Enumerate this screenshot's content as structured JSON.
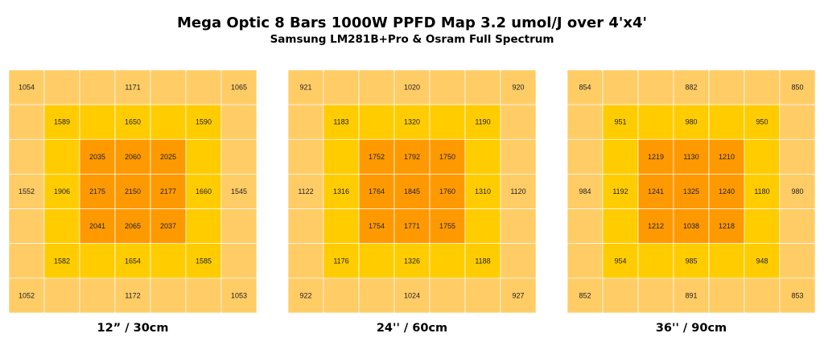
{
  "title": "Mega Optic 8 Bars 1000W PPFD Map 3.2 umol/J over 4'x4'",
  "subtitle": "Samsung LM281B+Pro & Osram Full Spectrum",
  "colors": {
    "outer": "#FFCC66",
    "middle": "#FFCC00",
    "inner": "#FF9900",
    "grid": "#FFFFFF"
  },
  "chart_data": [
    {
      "type": "heatmap",
      "title": "12” / 30cm",
      "zones": [
        "outer",
        "outer",
        "outer",
        "outer",
        "outer",
        "outer",
        "outer",
        "outer",
        "middle",
        "middle",
        "middle",
        "middle",
        "middle",
        "outer",
        "outer",
        "middle",
        "inner",
        "inner",
        "inner",
        "middle",
        "outer",
        "outer",
        "middle",
        "inner",
        "inner",
        "inner",
        "middle",
        "outer",
        "outer",
        "middle",
        "inner",
        "inner",
        "inner",
        "middle",
        "outer",
        "outer",
        "middle",
        "middle",
        "middle",
        "middle",
        "middle",
        "outer",
        "outer",
        "outer",
        "outer",
        "outer",
        "outer",
        "outer",
        "outer"
      ],
      "readings": [
        {
          "row": 0,
          "col": 0,
          "value": "1054"
        },
        {
          "row": 0,
          "col": 3,
          "value": "1171"
        },
        {
          "row": 0,
          "col": 6,
          "value": "1065"
        },
        {
          "row": 1,
          "col": 1,
          "value": "1589"
        },
        {
          "row": 1,
          "col": 3,
          "value": "1650"
        },
        {
          "row": 1,
          "col": 5,
          "value": "1590"
        },
        {
          "row": 2,
          "col": 2,
          "value": "2035"
        },
        {
          "row": 2,
          "col": 3,
          "value": "2060"
        },
        {
          "row": 2,
          "col": 4,
          "value": "2025"
        },
        {
          "row": 3,
          "col": 0,
          "value": "1552"
        },
        {
          "row": 3,
          "col": 1,
          "value": "1906"
        },
        {
          "row": 3,
          "col": 2,
          "value": "2175"
        },
        {
          "row": 3,
          "col": 3,
          "value": "2150"
        },
        {
          "row": 3,
          "col": 4,
          "value": "2177"
        },
        {
          "row": 3,
          "col": 5,
          "value": "1660"
        },
        {
          "row": 3,
          "col": 6,
          "value": "1545"
        },
        {
          "row": 4,
          "col": 2,
          "value": "2041"
        },
        {
          "row": 4,
          "col": 3,
          "value": "2065"
        },
        {
          "row": 4,
          "col": 4,
          "value": "2037"
        },
        {
          "row": 5,
          "col": 1,
          "value": "1582"
        },
        {
          "row": 5,
          "col": 3,
          "value": "1654"
        },
        {
          "row": 5,
          "col": 5,
          "value": "1585"
        },
        {
          "row": 6,
          "col": 0,
          "value": "1052"
        },
        {
          "row": 6,
          "col": 3,
          "value": "1172"
        },
        {
          "row": 6,
          "col": 6,
          "value": "1053"
        }
      ]
    },
    {
      "type": "heatmap",
      "title": "24'' / 60cm",
      "zones": [
        "outer",
        "outer",
        "outer",
        "outer",
        "outer",
        "outer",
        "outer",
        "outer",
        "middle",
        "middle",
        "middle",
        "middle",
        "middle",
        "outer",
        "outer",
        "middle",
        "inner",
        "inner",
        "inner",
        "middle",
        "outer",
        "outer",
        "middle",
        "inner",
        "inner",
        "inner",
        "middle",
        "outer",
        "outer",
        "middle",
        "inner",
        "inner",
        "inner",
        "middle",
        "outer",
        "outer",
        "middle",
        "middle",
        "middle",
        "middle",
        "middle",
        "outer",
        "outer",
        "outer",
        "outer",
        "outer",
        "outer",
        "outer",
        "outer"
      ],
      "readings": [
        {
          "row": 0,
          "col": 0,
          "value": "921"
        },
        {
          "row": 0,
          "col": 3,
          "value": "1020"
        },
        {
          "row": 0,
          "col": 6,
          "value": "920"
        },
        {
          "row": 1,
          "col": 1,
          "value": "1183"
        },
        {
          "row": 1,
          "col": 3,
          "value": "1320"
        },
        {
          "row": 1,
          "col": 5,
          "value": "1190"
        },
        {
          "row": 2,
          "col": 2,
          "value": "1752"
        },
        {
          "row": 2,
          "col": 3,
          "value": "1792"
        },
        {
          "row": 2,
          "col": 4,
          "value": "1750"
        },
        {
          "row": 3,
          "col": 0,
          "value": "1122"
        },
        {
          "row": 3,
          "col": 1,
          "value": "1316"
        },
        {
          "row": 3,
          "col": 2,
          "value": "1764"
        },
        {
          "row": 3,
          "col": 3,
          "value": "1845"
        },
        {
          "row": 3,
          "col": 4,
          "value": "1760"
        },
        {
          "row": 3,
          "col": 5,
          "value": "1310"
        },
        {
          "row": 3,
          "col": 6,
          "value": "1120"
        },
        {
          "row": 4,
          "col": 2,
          "value": "1754"
        },
        {
          "row": 4,
          "col": 3,
          "value": "1771"
        },
        {
          "row": 4,
          "col": 4,
          "value": "1755"
        },
        {
          "row": 5,
          "col": 1,
          "value": "1176"
        },
        {
          "row": 5,
          "col": 3,
          "value": "1326"
        },
        {
          "row": 5,
          "col": 5,
          "value": "1188"
        },
        {
          "row": 6,
          "col": 0,
          "value": "922"
        },
        {
          "row": 6,
          "col": 3,
          "value": "1024"
        },
        {
          "row": 6,
          "col": 6,
          "value": "927"
        }
      ]
    },
    {
      "type": "heatmap",
      "title": "36'' / 90cm",
      "zones": [
        "outer",
        "outer",
        "outer",
        "outer",
        "outer",
        "outer",
        "outer",
        "outer",
        "middle",
        "middle",
        "middle",
        "middle",
        "middle",
        "outer",
        "outer",
        "middle",
        "inner",
        "inner",
        "inner",
        "middle",
        "outer",
        "outer",
        "middle",
        "inner",
        "inner",
        "inner",
        "middle",
        "outer",
        "outer",
        "middle",
        "inner",
        "inner",
        "inner",
        "middle",
        "outer",
        "outer",
        "middle",
        "middle",
        "middle",
        "middle",
        "middle",
        "outer",
        "outer",
        "outer",
        "outer",
        "outer",
        "outer",
        "outer",
        "outer"
      ],
      "readings": [
        {
          "row": 0,
          "col": 0,
          "value": "854"
        },
        {
          "row": 0,
          "col": 3,
          "value": "882"
        },
        {
          "row": 0,
          "col": 6,
          "value": "850"
        },
        {
          "row": 1,
          "col": 1,
          "value": "951"
        },
        {
          "row": 1,
          "col": 3,
          "value": "980"
        },
        {
          "row": 1,
          "col": 5,
          "value": "950"
        },
        {
          "row": 2,
          "col": 2,
          "value": "1219"
        },
        {
          "row": 2,
          "col": 3,
          "value": "1130"
        },
        {
          "row": 2,
          "col": 4,
          "value": "1210"
        },
        {
          "row": 3,
          "col": 0,
          "value": "984"
        },
        {
          "row": 3,
          "col": 1,
          "value": "1192"
        },
        {
          "row": 3,
          "col": 2,
          "value": "1241"
        },
        {
          "row": 3,
          "col": 3,
          "value": "1325"
        },
        {
          "row": 3,
          "col": 4,
          "value": "1240"
        },
        {
          "row": 3,
          "col": 5,
          "value": "1180"
        },
        {
          "row": 3,
          "col": 6,
          "value": "980"
        },
        {
          "row": 4,
          "col": 2,
          "value": "1212"
        },
        {
          "row": 4,
          "col": 3,
          "value": "1038"
        },
        {
          "row": 4,
          "col": 4,
          "value": "1218"
        },
        {
          "row": 5,
          "col": 1,
          "value": "954"
        },
        {
          "row": 5,
          "col": 3,
          "value": "985"
        },
        {
          "row": 5,
          "col": 5,
          "value": "948"
        },
        {
          "row": 6,
          "col": 0,
          "value": "852"
        },
        {
          "row": 6,
          "col": 3,
          "value": "891"
        },
        {
          "row": 6,
          "col": 6,
          "value": "853"
        }
      ]
    }
  ]
}
